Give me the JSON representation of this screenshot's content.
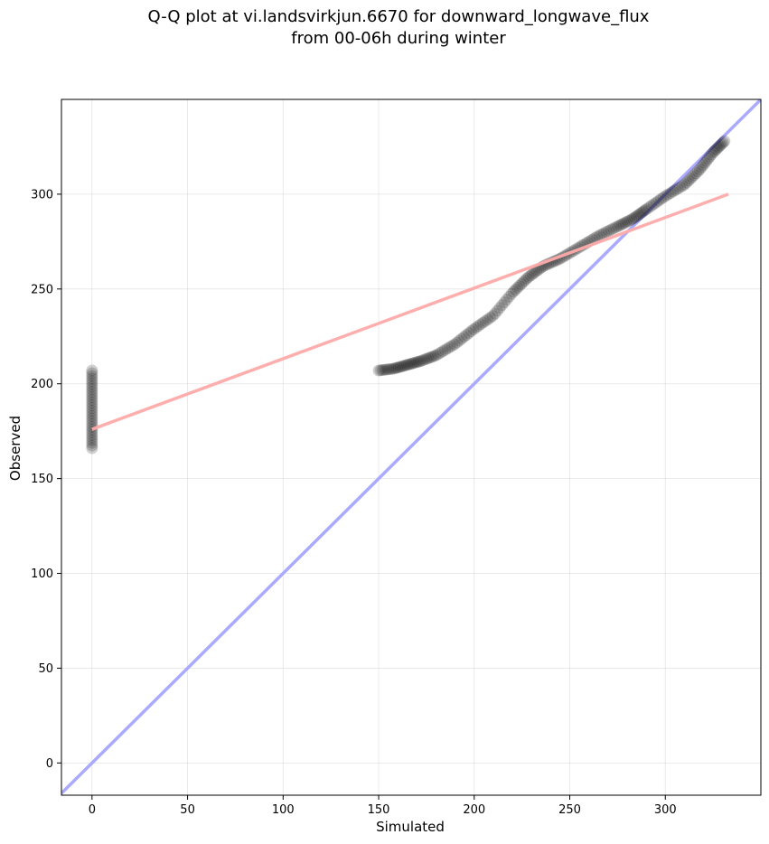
{
  "chart_data": {
    "type": "scatter",
    "title_lines": [
      "Q-Q plot at vi.landsvirkjun.6670 for downward_longwave_flux",
      "from 00-06h during winter"
    ],
    "xlabel": "Simulated",
    "ylabel": "Observed",
    "xlim": [
      -16,
      350
    ],
    "ylim": [
      -17,
      350
    ],
    "xticks": [
      0,
      50,
      100,
      150,
      200,
      250,
      300
    ],
    "yticks": [
      0,
      50,
      100,
      150,
      200,
      250,
      300
    ],
    "grid": true,
    "colors": {
      "points": "#000000",
      "identity_line": "#aaaaff",
      "fit_line": "#ffaaaa"
    },
    "identity_line": {
      "x": [
        -16,
        350
      ],
      "y": [
        -16,
        350
      ]
    },
    "fit_line": {
      "x": [
        0,
        333
      ],
      "y": [
        176,
        300
      ]
    },
    "point_clusters": [
      {
        "x": [
          0,
          0
        ],
        "y": [
          166,
          207
        ],
        "count": 30
      },
      {
        "curve_x": [
          150,
          158,
          165,
          172,
          180,
          190,
          200,
          210,
          220,
          228,
          236,
          245,
          255,
          265,
          275,
          283,
          290,
          300,
          310,
          318,
          325,
          331
        ],
        "curve_y": [
          207,
          208,
          210,
          212,
          215,
          221,
          229,
          236,
          248,
          256,
          262,
          266,
          272,
          278,
          283,
          287,
          292,
          299,
          305,
          313,
          322,
          328
        ],
        "count": 170
      }
    ]
  }
}
